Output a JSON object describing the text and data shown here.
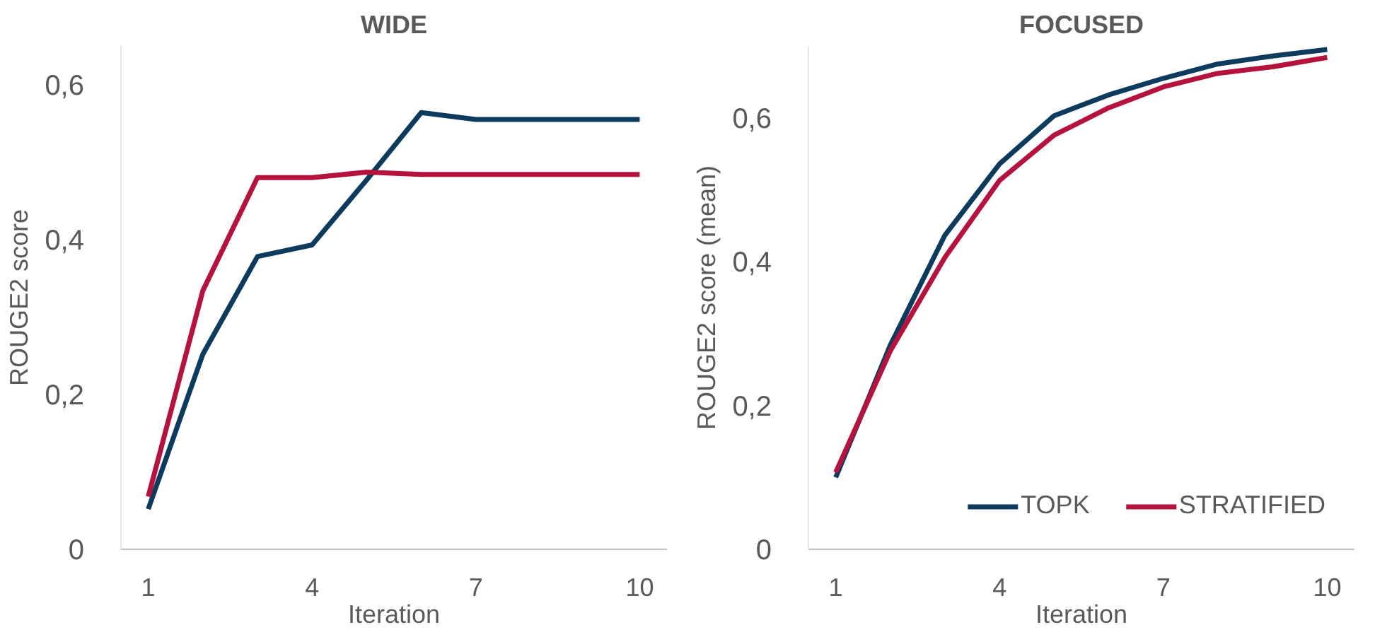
{
  "chart_data": [
    {
      "type": "line",
      "title": "WIDE",
      "xlabel": "Iteration",
      "ylabel": "ROUGE2 score",
      "x": [
        1,
        2,
        3,
        4,
        5,
        6,
        7,
        8,
        9,
        10
      ],
      "series": [
        {
          "color": "#0d3b5e",
          "values": [
            0.052,
            0.252,
            0.378,
            0.393,
            0.477,
            0.564,
            0.555,
            0.555,
            0.555,
            0.555
          ]
        },
        {
          "color": "#b5123e",
          "values": [
            0.068,
            0.334,
            0.48,
            0.48,
            0.487,
            0.484,
            0.484,
            0.484,
            0.484,
            0.484
          ]
        }
      ],
      "xlim": [
        0.5,
        10.5
      ],
      "xticks": [
        1,
        4,
        7,
        10
      ],
      "ylim": [
        0,
        0.65
      ],
      "yticks": [
        {
          "value": 0,
          "label": "0"
        },
        {
          "value": 0.2,
          "label": "0,2"
        },
        {
          "value": 0.4,
          "label": "0,4"
        },
        {
          "value": 0.6,
          "label": "0,6"
        }
      ],
      "grid": false,
      "legend": false
    },
    {
      "type": "line",
      "title": "FOCUSED",
      "xlabel": "Iteration",
      "ylabel": "ROUGE2 score (mean)",
      "x": [
        1,
        2,
        3,
        4,
        5,
        6,
        7,
        8,
        9,
        10
      ],
      "series": [
        {
          "name": "TOPK",
          "color": "#0d3b5e",
          "values": [
            0.1,
            0.284,
            0.437,
            0.536,
            0.603,
            0.632,
            0.655,
            0.675,
            0.686,
            0.695
          ]
        },
        {
          "name": "STRATIFIED",
          "color": "#b5123e",
          "values": [
            0.107,
            0.276,
            0.406,
            0.513,
            0.576,
            0.614,
            0.643,
            0.662,
            0.671,
            0.684
          ]
        }
      ],
      "xlim": [
        0.5,
        10.5
      ],
      "xticks": [
        1,
        4,
        7,
        10
      ],
      "ylim": [
        0,
        0.7
      ],
      "yticks": [
        {
          "value": 0,
          "label": "0"
        },
        {
          "value": 0.2,
          "label": "0,2"
        },
        {
          "value": 0.4,
          "label": "0,4"
        },
        {
          "value": 0.6,
          "label": "0,6"
        }
      ],
      "grid": false,
      "legend": "bottom right"
    }
  ]
}
